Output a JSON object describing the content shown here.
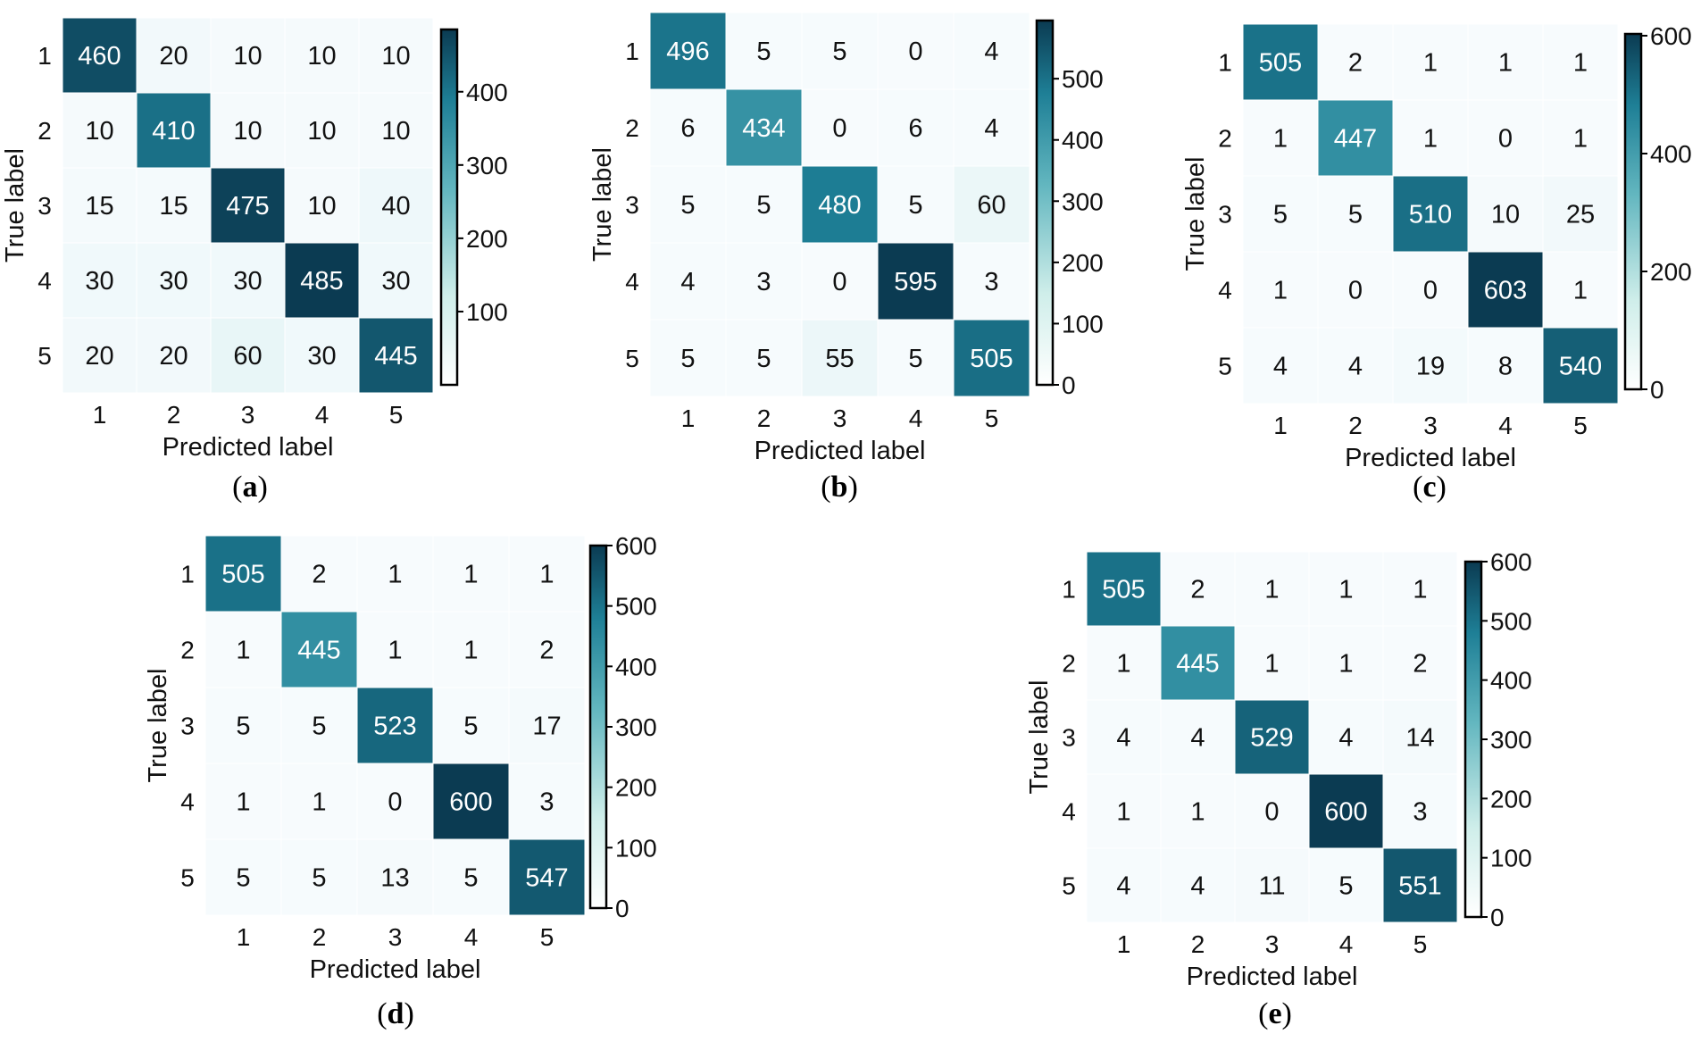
{
  "figure": {
    "panels": [
      {
        "label": "a"
      },
      {
        "label": "b"
      },
      {
        "label": "c"
      },
      {
        "label": "d"
      },
      {
        "label": "e"
      }
    ]
  },
  "chart_data": [
    {
      "type": "heatmap",
      "panel": "a",
      "xlabel": "Predicted label",
      "ylabel": "True label",
      "x_categories": [
        "1",
        "2",
        "3",
        "4",
        "5"
      ],
      "y_categories": [
        "1",
        "2",
        "3",
        "4",
        "5"
      ],
      "values": [
        [
          460,
          20,
          10,
          10,
          10
        ],
        [
          10,
          410,
          10,
          10,
          10
        ],
        [
          15,
          15,
          475,
          10,
          40
        ],
        [
          30,
          30,
          30,
          485,
          30
        ],
        [
          20,
          20,
          60,
          30,
          445
        ]
      ],
      "colorbar": {
        "range": [
          0,
          485
        ],
        "ticks": [
          100,
          200,
          300,
          400
        ]
      }
    },
    {
      "type": "heatmap",
      "panel": "b",
      "xlabel": "Predicted label",
      "ylabel": "True label",
      "x_categories": [
        "1",
        "2",
        "3",
        "4",
        "5"
      ],
      "y_categories": [
        "1",
        "2",
        "3",
        "4",
        "5"
      ],
      "values": [
        [
          496,
          5,
          5,
          0,
          4
        ],
        [
          6,
          434,
          0,
          6,
          4
        ],
        [
          5,
          5,
          480,
          5,
          60
        ],
        [
          4,
          3,
          0,
          595,
          3
        ],
        [
          5,
          5,
          55,
          5,
          505
        ]
      ],
      "colorbar": {
        "range": [
          0,
          595
        ],
        "ticks": [
          0,
          100,
          200,
          300,
          400,
          500
        ]
      }
    },
    {
      "type": "heatmap",
      "panel": "c",
      "xlabel": "Predicted label",
      "ylabel": "True label",
      "x_categories": [
        "1",
        "2",
        "3",
        "4",
        "5"
      ],
      "y_categories": [
        "1",
        "2",
        "3",
        "4",
        "5"
      ],
      "values": [
        [
          505,
          2,
          1,
          1,
          1
        ],
        [
          1,
          447,
          1,
          0,
          1
        ],
        [
          5,
          5,
          510,
          10,
          25
        ],
        [
          1,
          0,
          0,
          603,
          1
        ],
        [
          4,
          4,
          19,
          8,
          540
        ]
      ],
      "colorbar": {
        "range": [
          0,
          603
        ],
        "ticks": [
          0,
          200,
          400,
          600
        ]
      }
    },
    {
      "type": "heatmap",
      "panel": "d",
      "xlabel": "Predicted label",
      "ylabel": "True label",
      "x_categories": [
        "1",
        "2",
        "3",
        "4",
        "5"
      ],
      "y_categories": [
        "1",
        "2",
        "3",
        "4",
        "5"
      ],
      "values": [
        [
          505,
          2,
          1,
          1,
          1
        ],
        [
          1,
          445,
          1,
          1,
          2
        ],
        [
          5,
          5,
          523,
          5,
          17
        ],
        [
          1,
          1,
          0,
          600,
          3
        ],
        [
          5,
          5,
          13,
          5,
          547
        ]
      ],
      "colorbar": {
        "range": [
          0,
          600
        ],
        "ticks": [
          0,
          100,
          200,
          300,
          400,
          500,
          600
        ]
      }
    },
    {
      "type": "heatmap",
      "panel": "e",
      "xlabel": "Predicted label",
      "ylabel": "True label",
      "x_categories": [
        "1",
        "2",
        "3",
        "4",
        "5"
      ],
      "y_categories": [
        "1",
        "2",
        "3",
        "4",
        "5"
      ],
      "values": [
        [
          505,
          2,
          1,
          1,
          1
        ],
        [
          1,
          445,
          1,
          1,
          2
        ],
        [
          4,
          4,
          529,
          4,
          14
        ],
        [
          1,
          1,
          0,
          600,
          3
        ],
        [
          4,
          4,
          11,
          5,
          551
        ]
      ],
      "colorbar": {
        "range": [
          0,
          600
        ],
        "ticks": [
          0,
          100,
          200,
          300,
          400,
          500,
          600
        ]
      }
    }
  ],
  "colors": {
    "colormap_low": "#ffffff",
    "colormap_mid_light": "#cfeeea",
    "colormap_mid": "#62b6bf",
    "colormap_high_mid": "#1e7f96",
    "colormap_high": "#0b3b52",
    "grid_line": "#ffffff",
    "text_dark": "#111111",
    "text_light": "#ffffff"
  }
}
